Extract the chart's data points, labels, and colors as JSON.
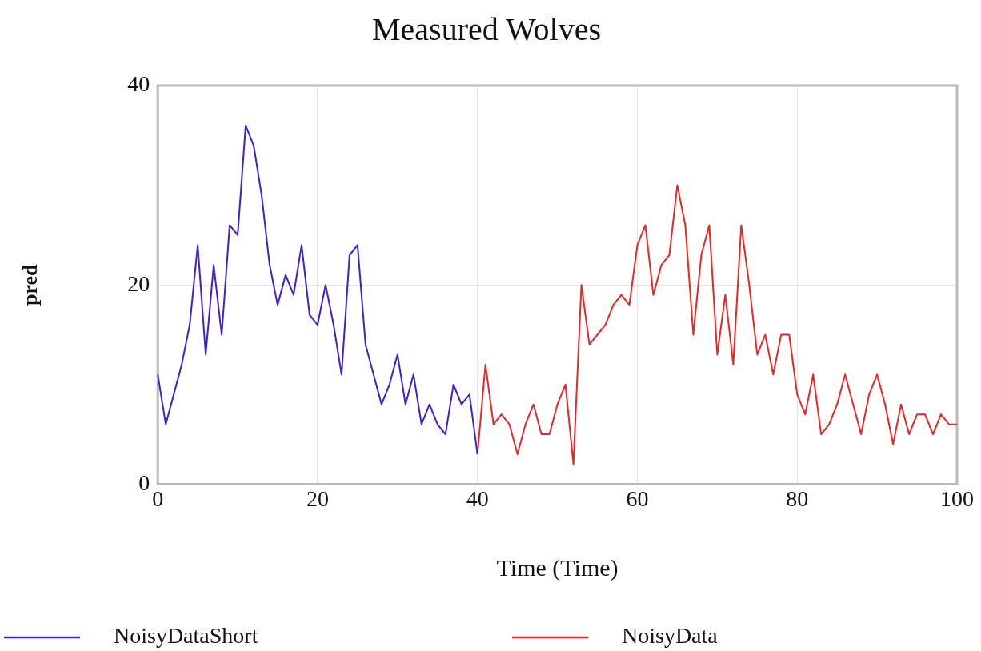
{
  "chart_data": {
    "type": "line",
    "title": "Measured Wolves",
    "xlabel": "Time (Time)",
    "ylabel": "pred",
    "xlim": [
      0,
      100
    ],
    "xticks": [
      0,
      20,
      40,
      60,
      80,
      100
    ],
    "ylim": [
      0,
      40
    ],
    "yticks": [
      0,
      20,
      40
    ],
    "grid": true,
    "legend": "bottom",
    "marker": "none",
    "line_style": "solid",
    "series": [
      {
        "name": "NoisyDataShort",
        "color": "#3f1fd0",
        "x": [
          0,
          1,
          2,
          3,
          4,
          5,
          6,
          7,
          8,
          9,
          10,
          11,
          12,
          13,
          14,
          15,
          16,
          17,
          18,
          19,
          20,
          21,
          22,
          23,
          24,
          25,
          26,
          27,
          28,
          29,
          30,
          31,
          32,
          33,
          34,
          35,
          36,
          37,
          38,
          39,
          40
        ],
        "values": [
          11,
          6,
          9,
          12,
          16,
          24,
          13,
          22,
          15,
          26,
          25,
          36,
          34,
          29,
          22,
          18,
          21,
          19,
          24,
          17,
          16,
          20,
          16,
          11,
          23,
          24,
          14,
          11,
          8,
          10,
          13,
          8,
          11,
          6,
          8,
          6,
          5,
          10,
          8,
          9,
          3
        ]
      },
      {
        "name": "NoisyData",
        "color": "#ee2424",
        "x": [
          40,
          41,
          42,
          43,
          44,
          45,
          46,
          47,
          48,
          49,
          50,
          51,
          52,
          53,
          54,
          55,
          56,
          57,
          58,
          59,
          60,
          61,
          62,
          63,
          64,
          65,
          66,
          67,
          68,
          69,
          70,
          71,
          72,
          73,
          74,
          75,
          76,
          77,
          78,
          79,
          80,
          81,
          82,
          83,
          84,
          85,
          86,
          87,
          88,
          89,
          90,
          91,
          92,
          93,
          94,
          95,
          96,
          97,
          98,
          99,
          100
        ],
        "values": [
          3,
          12,
          6,
          7,
          6,
          3,
          6,
          8,
          5,
          5,
          8,
          10,
          2,
          20,
          14,
          15,
          16,
          18,
          19,
          18,
          24,
          26,
          19,
          22,
          23,
          30,
          26,
          15,
          23,
          26,
          13,
          19,
          12,
          26,
          20,
          13,
          15,
          11,
          15,
          15,
          9,
          7,
          11,
          5,
          6,
          8,
          11,
          8,
          5,
          9,
          11,
          8,
          4,
          8,
          5,
          7,
          7,
          5,
          7,
          6,
          6
        ]
      }
    ]
  }
}
